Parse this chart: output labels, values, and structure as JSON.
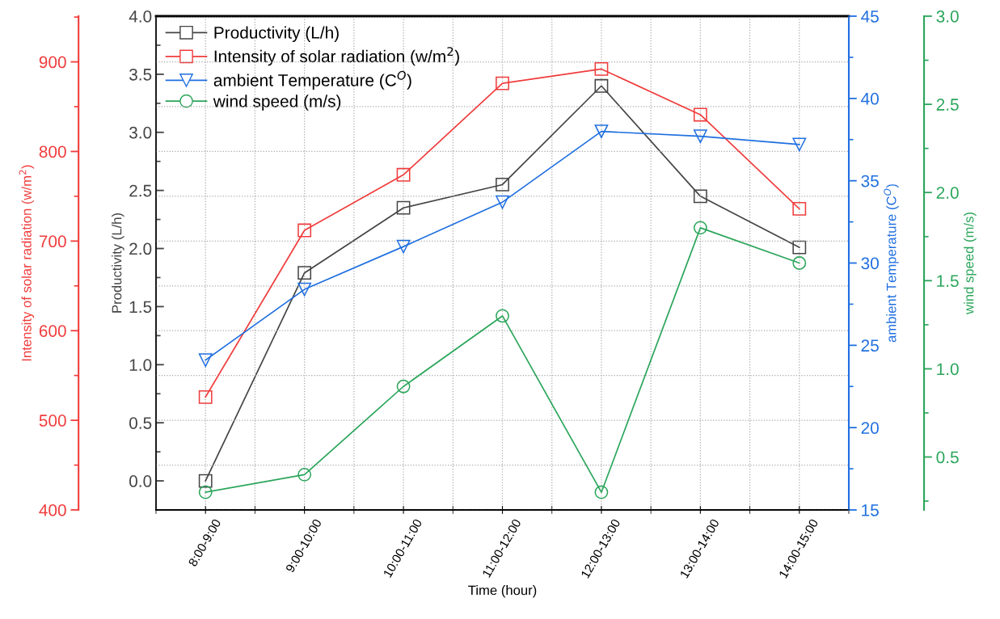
{
  "chart_data": [
    {
      "type": "line",
      "xlabel": "Time (hour)",
      "ylabel": "Productivity (L/h)",
      "y2label": "Intensity of solar radiation (w/m$^{2}$)",
      "y3label": "ambient Temperature (C$^{O}$)",
      "categories": [
        "8:00-9:00",
        "9:00-10:00",
        "10:00-11:00",
        "11:00-12:00",
        "12:00-13:00",
        "13:00-14:00",
        "14:00-15:00"
      ],
      "series": [
        {
          "name": "Productivity (L/h)",
          "color": "#444444",
          "axis": "y",
          "values": [
            0.0,
            1.79,
            2.35,
            2.55,
            3.4,
            2.45,
            2.01
          ]
        },
        {
          "name": "Intensity of solar radiation (w/m$^{2}$)",
          "color": "#f03c3c",
          "axis": "y2",
          "values": [
            526,
            712,
            774,
            876,
            892,
            841,
            736
          ]
        },
        {
          "name": "ambient Temperature (C$^{O}$)",
          "color": "#1f6fe0",
          "axis": "y3",
          "marker": "triangle",
          "values": [
            24.1,
            28.4,
            31.0,
            33.7,
            38.0,
            37.7,
            37.2
          ]
        }
      ],
      "marker": "square",
      "ylim": [
        -0.25,
        4.0
      ],
      "yticks": [
        {
          "value": 0,
          "label": "0.0"
        },
        0.5,
        {
          "value": 1,
          "label": "1.0"
        },
        1.5,
        {
          "value": 2,
          "label": "2.0"
        },
        2.5,
        {
          "value": 3,
          "label": "3.0"
        },
        3.5,
        {
          "value": 4,
          "label": "4.0"
        }
      ],
      "y2lim": [
        400,
        951
      ],
      "y2ticks": [
        400,
        500,
        600,
        700,
        800,
        900
      ],
      "y3lim": [
        15,
        45
      ],
      "y3ticks": [
        15,
        20,
        25,
        30,
        35,
        40,
        45
      ],
      "grid": true,
      "legend": "top left",
      "line_style": "solid"
    },
    {
      "type": "line",
      "ylabel": "wind speed (m/s)",
      "tick_labels": "y",
      "categories": [
        null,
        null,
        null,
        null,
        null,
        null,
        null
      ],
      "series": [
        {
          "name": "wind speed (m/s)",
          "color": "#2aa55a",
          "values": [
            0.3,
            0.4,
            0.9,
            1.3,
            0.3,
            1.8,
            1.6
          ]
        }
      ],
      "marker": "circle",
      "ylim": [
        0.2,
        3.0
      ],
      "yticks": [
        0.5,
        {
          "value": 1,
          "label": "1.0"
        },
        1.5,
        {
          "value": 2,
          "label": "2.0"
        },
        2.5,
        {
          "value": 3,
          "label": "3.0"
        }
      ],
      "line_style": "solid"
    }
  ]
}
